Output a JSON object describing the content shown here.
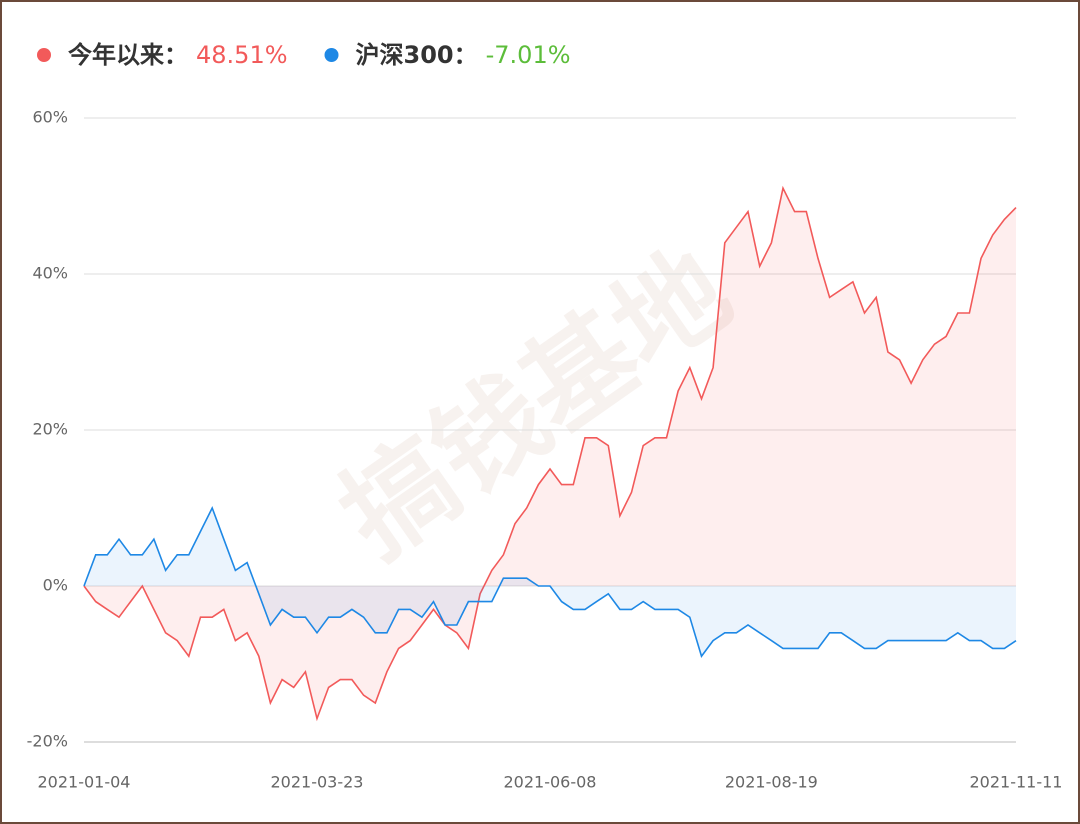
{
  "chart_data": {
    "type": "line",
    "watermark": "搞钱基地",
    "categories": [
      "2021-01-04",
      null,
      null,
      null,
      null,
      null,
      null,
      null,
      null,
      null,
      null,
      null,
      null,
      null,
      null,
      null,
      null,
      null,
      null,
      null,
      "2021-03-23",
      null,
      null,
      null,
      null,
      null,
      null,
      null,
      null,
      null,
      null,
      null,
      null,
      null,
      null,
      null,
      null,
      null,
      null,
      null,
      "2021-06-08",
      null,
      null,
      null,
      null,
      null,
      null,
      null,
      null,
      null,
      null,
      null,
      null,
      null,
      null,
      null,
      null,
      null,
      null,
      "2021-08-19",
      null,
      null,
      null,
      null,
      null,
      null,
      null,
      null,
      null,
      null,
      null,
      null,
      null,
      null,
      null,
      null,
      null,
      null,
      null,
      null,
      "2021-11-11"
    ],
    "series": [
      {
        "name": "今年以来：",
        "summary": "48.51%",
        "summary_color": "#f25a5a",
        "color": "#f25a5a",
        "fill": "rgba(242,90,90,0.1)",
        "values": [
          0,
          -2,
          -3,
          -4,
          -2,
          0,
          -3,
          -6,
          -7,
          -9,
          -4,
          -4,
          -3,
          -7,
          -6,
          -9,
          -15,
          -12,
          -13,
          -11,
          -17,
          -13,
          -12,
          -12,
          -14,
          -15,
          -11,
          -8,
          -7,
          -5,
          -3,
          -5,
          -6,
          -8,
          -1,
          2,
          4,
          8,
          10,
          13,
          15,
          13,
          13,
          19,
          19,
          18,
          9,
          12,
          18,
          19,
          19,
          25,
          28,
          24,
          28,
          44,
          46,
          48,
          41,
          44,
          51,
          48,
          48,
          42,
          37,
          38,
          39,
          35,
          37,
          30,
          29,
          26,
          29,
          31,
          32,
          35,
          35,
          42,
          45,
          47,
          48.51
        ]
      },
      {
        "name": "沪深300：",
        "summary": "-7.01%",
        "summary_color": "#5cbd3a",
        "color": "#1e88e5",
        "fill": "rgba(30,136,229,0.09)",
        "values": [
          0,
          4,
          4,
          6,
          4,
          4,
          6,
          2,
          4,
          4,
          7,
          10,
          6,
          2,
          3,
          -1,
          -5,
          -3,
          -4,
          -4,
          -6,
          -4,
          -4,
          -3,
          -4,
          -6,
          -6,
          -3,
          -3,
          -4,
          -2,
          -5,
          -5,
          -2,
          -2,
          -2,
          1,
          1,
          1,
          0,
          0,
          -2,
          -3,
          -3,
          -2,
          -1,
          -3,
          -3,
          -2,
          -3,
          -3,
          -3,
          -4,
          -9,
          -7,
          -6,
          -6,
          -5,
          -6,
          -7,
          -8,
          -8,
          -8,
          -8,
          -6,
          -6,
          -7,
          -8,
          -8,
          -7,
          -7,
          -7,
          -7,
          -7,
          -7,
          -6,
          -7,
          -7,
          -8,
          -8,
          -7.01
        ]
      }
    ],
    "ylim": [
      -20,
      60
    ],
    "yticks": [
      {
        "value": -20,
        "label": "-20%"
      },
      {
        "value": 0,
        "label": "0%"
      },
      {
        "value": 20,
        "label": "20%"
      },
      {
        "value": 40,
        "label": "40%"
      },
      {
        "value": 60,
        "label": "60%"
      }
    ],
    "grid": true
  }
}
